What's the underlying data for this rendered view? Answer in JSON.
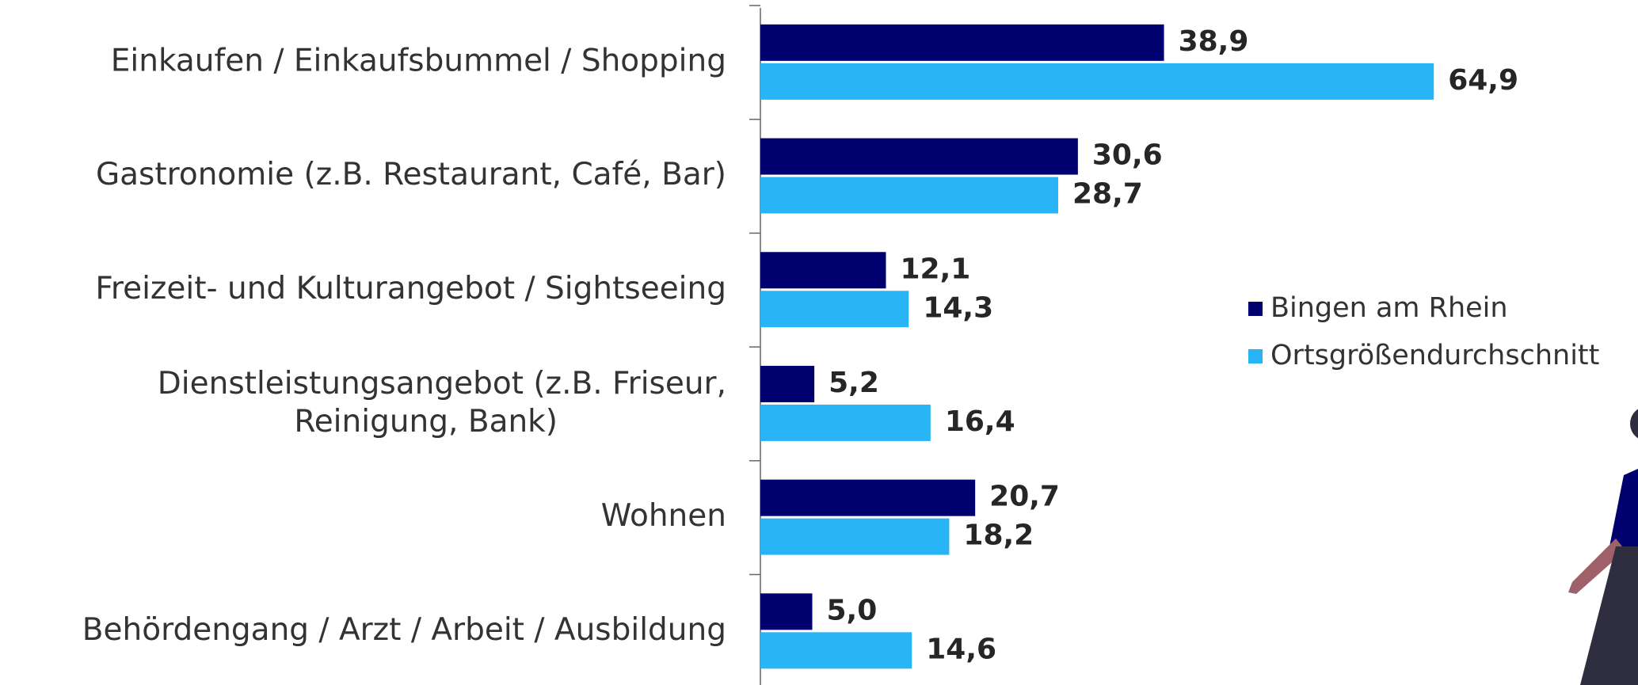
{
  "chart_data": {
    "type": "bar",
    "orientation": "horizontal",
    "categories": [
      "Einkaufen / Einkaufsbummel / Shopping",
      "Gastronomie (z.B. Restaurant, Café, Bar)",
      "Freizeit- und Kulturangebot / Sightseeing",
      "Dienstleistungsangebot (z.B. Friseur,\nReinigung, Bank)",
      "Wohnen",
      "Behördengang / Arzt / Arbeit / Ausbildung"
    ],
    "series": [
      {
        "name": "Bingen am Rhein",
        "color": "#00006e",
        "values": [
          38.9,
          30.6,
          12.1,
          5.2,
          20.7,
          5.0
        ],
        "value_labels": [
          "38,9",
          "30,6",
          "12,1",
          "5,2",
          "20,7",
          "5,0"
        ]
      },
      {
        "name": "Ortsgrößendurchschnitt",
        "color": "#29b4f6",
        "values": [
          64.9,
          28.7,
          14.3,
          16.4,
          18.2,
          14.6
        ],
        "value_labels": [
          "64,9",
          "28,7",
          "14,3",
          "16,4",
          "18,2",
          "14,6"
        ]
      }
    ],
    "legend": "right"
  }
}
